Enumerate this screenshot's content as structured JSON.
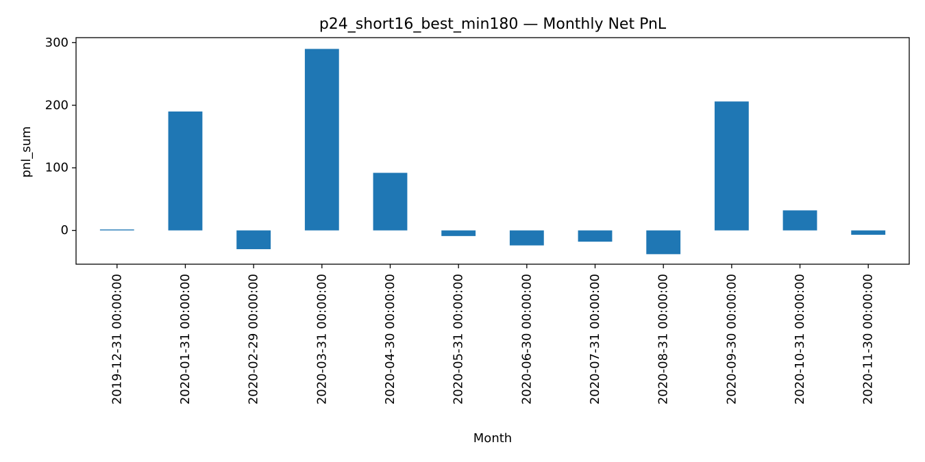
{
  "chart_data": {
    "type": "bar",
    "title": "p24_short16_best_min180 — Monthly Net PnL",
    "xlabel": "Month",
    "ylabel": "pnl_sum",
    "categories": [
      "2019-12-31 00:00:00",
      "2020-01-31 00:00:00",
      "2020-02-29 00:00:00",
      "2020-03-31 00:00:00",
      "2020-04-30 00:00:00",
      "2020-05-31 00:00:00",
      "2020-06-30 00:00:00",
      "2020-07-31 00:00:00",
      "2020-08-31 00:00:00",
      "2020-09-30 00:00:00",
      "2020-10-31 00:00:00",
      "2020-11-30 00:00:00"
    ],
    "values": [
      1.5,
      190,
      -30,
      290,
      92,
      -9,
      -24,
      -18,
      -38,
      206,
      32,
      -7
    ],
    "ylim": [
      -54,
      308
    ],
    "yticks": [
      0,
      100,
      200,
      300
    ],
    "grid": false,
    "colors": {
      "bar": "#1f77b4",
      "axis": "#000000"
    }
  }
}
